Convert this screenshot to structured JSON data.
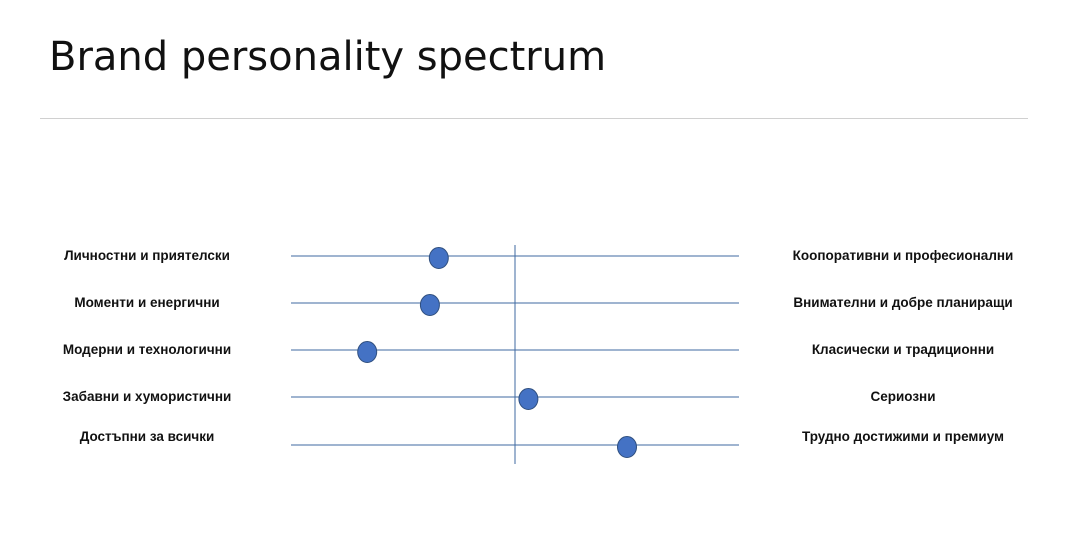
{
  "title": "Brand personality spectrum",
  "chart_data": {
    "type": "scatter",
    "scale": [
      0,
      100
    ],
    "rows": [
      {
        "left": "Личностни и приятелски",
        "right": "Коопоративни и професионални",
        "value": 33
      },
      {
        "left": "Моменти и енергични",
        "right": "Внимателни и добре планиращи",
        "value": 31
      },
      {
        "left": "Модерни и технологични",
        "right": "Класически и традиционни",
        "value": 17
      },
      {
        "left": "Забавни и хумористични",
        "right": "Сериозни",
        "value": 53
      },
      {
        "left": "Достъпни за всички",
        "right": "Трудно достижими и премиум",
        "value": 75
      }
    ],
    "colors": {
      "line": "#3f6aa2",
      "marker_fill": "#4472c4",
      "marker_stroke": "#2f4f7f"
    }
  }
}
